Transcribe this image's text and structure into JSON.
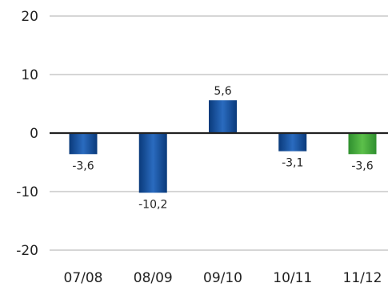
{
  "chart_data": {
    "type": "bar",
    "categories": [
      "07/08",
      "08/09",
      "09/10",
      "10/11",
      "11/12"
    ],
    "values": [
      -3.6,
      -10.2,
      5.6,
      -3.1,
      -3.6
    ],
    "value_labels": [
      "-3,6",
      "-10,2",
      "5,6",
      "-3,1",
      "-3,6"
    ],
    "highlight_index": 4,
    "y_ticks": [
      20,
      10,
      0,
      -10,
      -20
    ],
    "y_tick_labels": [
      "20",
      "10",
      "0",
      "-10",
      "-20"
    ],
    "ylim": [
      -20,
      20
    ],
    "grid": true,
    "title": "",
    "xlabel": "",
    "ylabel": "",
    "colors": {
      "bar_dark": "#0a3a7a",
      "bar_light": "#2a6bbf",
      "highlight_dark": "#2f8f2f",
      "highlight_light": "#5cc04a",
      "grid": "#c8c8c8",
      "zero_line": "#222222"
    }
  }
}
